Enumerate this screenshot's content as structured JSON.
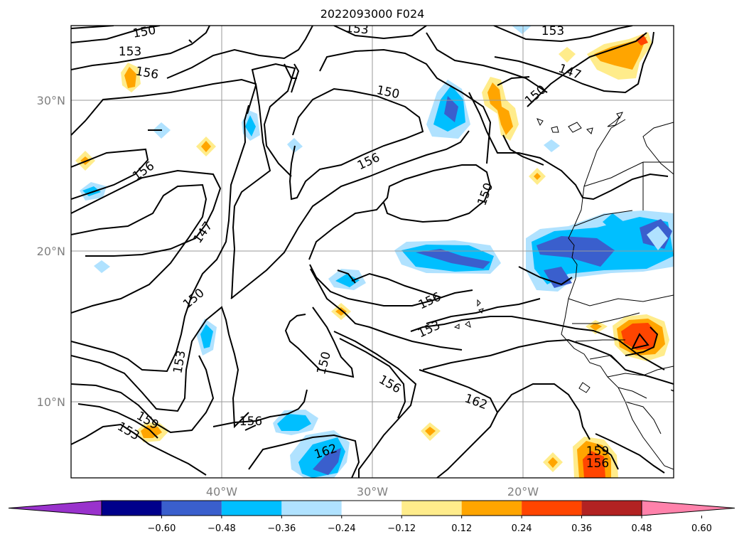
{
  "title": "2022093000 F024",
  "map": {
    "lat_ticks": [
      "30°N",
      "20°N",
      "10°N"
    ],
    "lon_ticks": [
      "40°W",
      "30°W",
      "20°W"
    ],
    "gridlines": true,
    "contour_field": "geopotential height",
    "contour_labels": [
      "150",
      "153",
      "156",
      "153",
      "150",
      "156",
      "153",
      "147",
      "150",
      "156",
      "150",
      "147",
      "150",
      "153",
      "156",
      "153",
      "150",
      "156",
      "162",
      "156",
      "159",
      "153",
      "162",
      "159",
      "156"
    ]
  },
  "colorbar": {
    "orientation": "horizontal",
    "extend": "both",
    "tick_labels": [
      "−0.60",
      "−0.48",
      "−0.36",
      "−0.24",
      "−0.12",
      "0.12",
      "0.24",
      "0.36",
      "0.48",
      "0.60"
    ],
    "colors": [
      "#9932cc",
      "#00008b",
      "#3a5fcd",
      "#00bfff",
      "#b0e2ff",
      "#ffffff",
      "#ffec8b",
      "#ffa500",
      "#ff4500",
      "#b22222",
      "#ff82ab"
    ]
  }
}
